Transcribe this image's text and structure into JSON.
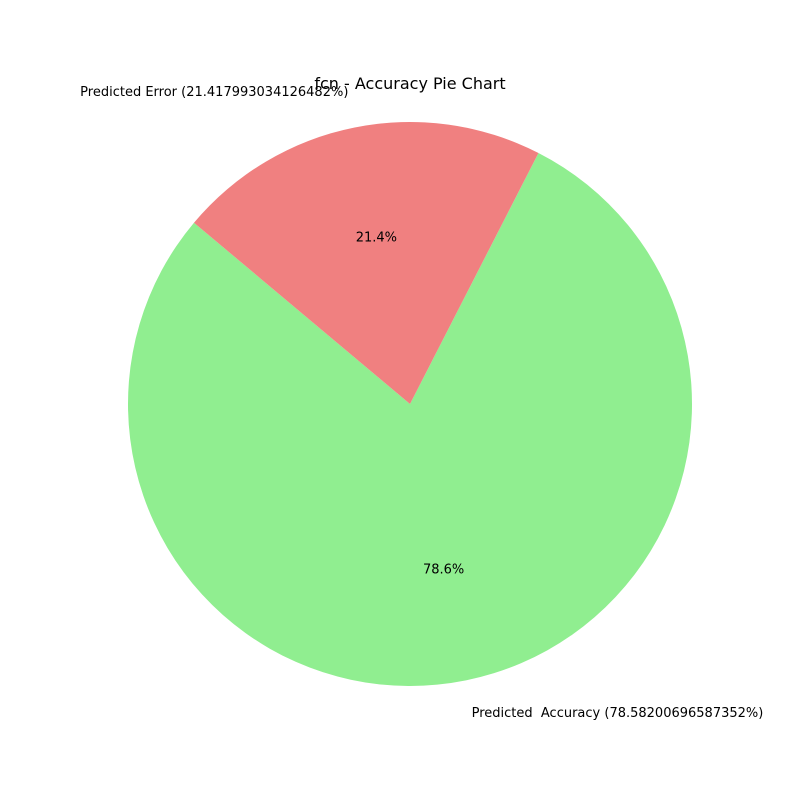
{
  "chart_data": {
    "type": "pie",
    "title": "fcn - Accuracy Pie Chart",
    "slices": [
      {
        "label": "Predicted  Accuracy (78.58200696587352%)",
        "value": 78.58200696587352,
        "pct_label": "78.6%",
        "color": "#90ee90"
      },
      {
        "label": "Predicted Error (21.417993034126482%)",
        "value": 21.417993034126482,
        "pct_label": "21.4%",
        "color": "#f08080"
      }
    ],
    "start_angle_deg": 140,
    "direction": "counterclockwise",
    "legend": "none"
  }
}
